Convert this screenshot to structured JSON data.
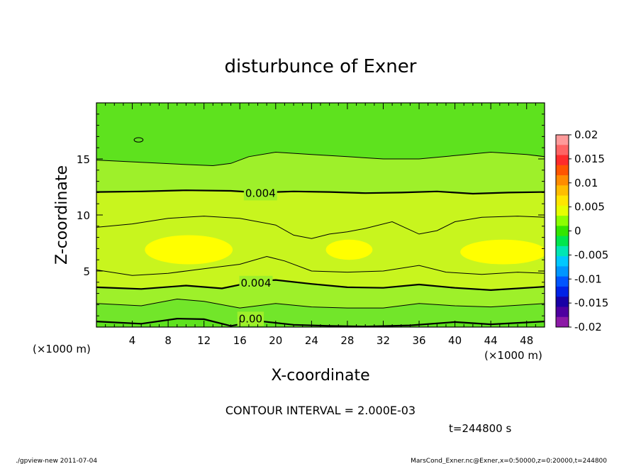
{
  "chart_data": {
    "type": "contour",
    "title": "disturbunce of Exner",
    "xlabel": "X-coordinate",
    "ylabel": "Z-coordinate",
    "x_unit_left": "(×1000 m)",
    "x_unit_right": "(×1000 m)",
    "xlim": [
      0,
      50
    ],
    "ylim": [
      0,
      20
    ],
    "xticks": [
      4,
      8,
      12,
      16,
      20,
      24,
      28,
      32,
      36,
      40,
      44,
      48
    ],
    "yticks": [
      5,
      10,
      15
    ],
    "contour_interval_text": "CONTOUR INTERVAL = 2.000E-03",
    "time_text": "t=244800 s",
    "footer_left": "./gpview-new  2011-07-04",
    "footer_right": "MarsCond_Exner.nc@Exner,x=0:50000,z=0:20000,t=244800",
    "contour_labels": [
      {
        "text": "0.004",
        "x": 18.3,
        "y": 12.0
      },
      {
        "text": "0.004",
        "x": 17.8,
        "y": 4.0
      },
      {
        "text": "0.00",
        "x": 17.2,
        "y": 0.8
      }
    ],
    "colorbar": {
      "range": [
        -0.02,
        0.02
      ],
      "tick_labels": [
        "0.02",
        "0.015",
        "0.01",
        "0.005",
        "0",
        "-0.005",
        "-0.01",
        "-0.015",
        "-0.02"
      ],
      "colors": [
        "#fe9a9a",
        "#fe6464",
        "#fe2b2b",
        "#ff5500",
        "#ff8c00",
        "#ffbd00",
        "#ffe600",
        "#e6ff00",
        "#8cff00",
        "#33e600",
        "#00e64d",
        "#00e6b4",
        "#00c8ff",
        "#0096ff",
        "#0055ff",
        "#0022e6",
        "#1800a6",
        "#4e00a0",
        "#8c1aa6"
      ]
    },
    "fill_levels": [
      {
        "value": 0.002,
        "color": "#72e62a"
      },
      {
        "value": 0.004,
        "color": "#9ef02a"
      },
      {
        "value": 0.006,
        "color": "#c8f51e"
      },
      {
        "value": 0.008,
        "color": "#ffff00"
      }
    ],
    "contours": [
      {
        "level": 0.0,
        "bold": true,
        "points": [
          [
            0,
            0.5
          ],
          [
            5,
            0.3
          ],
          [
            9,
            0.75
          ],
          [
            12,
            0.7
          ],
          [
            15,
            0.1
          ],
          [
            18,
            0.55
          ],
          [
            22,
            0.2
          ],
          [
            26,
            0.1
          ],
          [
            30,
            0.05
          ],
          [
            35,
            0.15
          ],
          [
            40,
            0.45
          ],
          [
            44,
            0.25
          ],
          [
            50,
            0.5
          ]
        ]
      },
      {
        "level": 0.002,
        "bold": false,
        "points": [
          [
            0,
            2.1
          ],
          [
            5,
            1.9
          ],
          [
            9,
            2.5
          ],
          [
            12,
            2.3
          ],
          [
            16,
            1.7
          ],
          [
            20,
            2.1
          ],
          [
            24,
            1.8
          ],
          [
            28,
            1.7
          ],
          [
            32,
            1.7
          ],
          [
            36,
            2.1
          ],
          [
            40,
            1.9
          ],
          [
            44,
            1.8
          ],
          [
            50,
            2.1
          ]
        ]
      },
      {
        "level": 0.004,
        "bold": true,
        "points": [
          [
            0,
            3.55
          ],
          [
            5,
            3.4
          ],
          [
            10,
            3.7
          ],
          [
            14,
            3.45
          ],
          [
            18,
            4.1
          ],
          [
            20,
            4.2
          ],
          [
            24,
            3.85
          ],
          [
            28,
            3.55
          ],
          [
            32,
            3.5
          ],
          [
            36,
            3.8
          ],
          [
            40,
            3.5
          ],
          [
            44,
            3.3
          ],
          [
            50,
            3.6
          ]
        ]
      },
      {
        "level": 0.006,
        "bold": false,
        "points": [
          [
            0,
            5.1
          ],
          [
            4,
            4.6
          ],
          [
            8,
            4.8
          ],
          [
            12,
            5.2
          ],
          [
            16,
            5.6
          ],
          [
            19,
            6.3
          ],
          [
            21,
            5.9
          ],
          [
            24,
            5.0
          ],
          [
            28,
            4.9
          ],
          [
            32,
            5.0
          ],
          [
            36,
            5.5
          ],
          [
            39,
            4.9
          ],
          [
            43,
            4.7
          ],
          [
            47,
            4.9
          ],
          [
            50,
            4.8
          ]
        ]
      },
      {
        "level": 0.006,
        "bold": false,
        "points": [
          [
            0,
            8.9
          ],
          [
            4,
            9.2
          ],
          [
            8,
            9.7
          ],
          [
            12,
            9.9
          ],
          [
            16,
            9.7
          ],
          [
            20,
            9.1
          ],
          [
            22,
            8.2
          ],
          [
            24,
            7.9
          ],
          [
            26,
            8.3
          ],
          [
            28,
            8.5
          ],
          [
            30,
            8.8
          ],
          [
            33,
            9.4
          ],
          [
            36,
            8.3
          ],
          [
            38,
            8.6
          ],
          [
            40,
            9.4
          ],
          [
            43,
            9.8
          ],
          [
            47,
            9.9
          ],
          [
            50,
            9.8
          ]
        ]
      },
      {
        "level": 0.004,
        "bold": true,
        "points": [
          [
            0,
            12.05
          ],
          [
            5,
            12.1
          ],
          [
            10,
            12.2
          ],
          [
            15,
            12.15
          ],
          [
            18,
            12.0
          ],
          [
            22,
            12.1
          ],
          [
            26,
            12.05
          ],
          [
            30,
            11.95
          ],
          [
            34,
            12.0
          ],
          [
            38,
            12.1
          ],
          [
            42,
            11.9
          ],
          [
            46,
            12.0
          ],
          [
            50,
            12.05
          ]
        ]
      },
      {
        "level": 0.002,
        "bold": false,
        "points": [
          [
            0,
            14.9
          ],
          [
            5,
            14.7
          ],
          [
            10,
            14.5
          ],
          [
            13,
            14.4
          ],
          [
            15,
            14.6
          ],
          [
            17,
            15.2
          ],
          [
            20,
            15.6
          ],
          [
            24,
            15.4
          ],
          [
            28,
            15.2
          ],
          [
            32,
            15.0
          ],
          [
            36,
            15.0
          ],
          [
            40,
            15.3
          ],
          [
            44,
            15.6
          ],
          [
            48,
            15.4
          ],
          [
            50,
            15.2
          ]
        ]
      }
    ],
    "small_features": [
      {
        "x": 4.7,
        "y": 16.7,
        "rx": 0.5,
        "ry": 0.2
      }
    ],
    "highlights": [
      {
        "x": 10.3,
        "y": 6.9,
        "rx": 4.9,
        "ry": 1.3
      },
      {
        "x": 28.2,
        "y": 6.9,
        "rx": 2.6,
        "ry": 0.9
      },
      {
        "x": 45.4,
        "y": 6.7,
        "rx": 4.8,
        "ry": 1.1
      }
    ],
    "grid": false
  }
}
